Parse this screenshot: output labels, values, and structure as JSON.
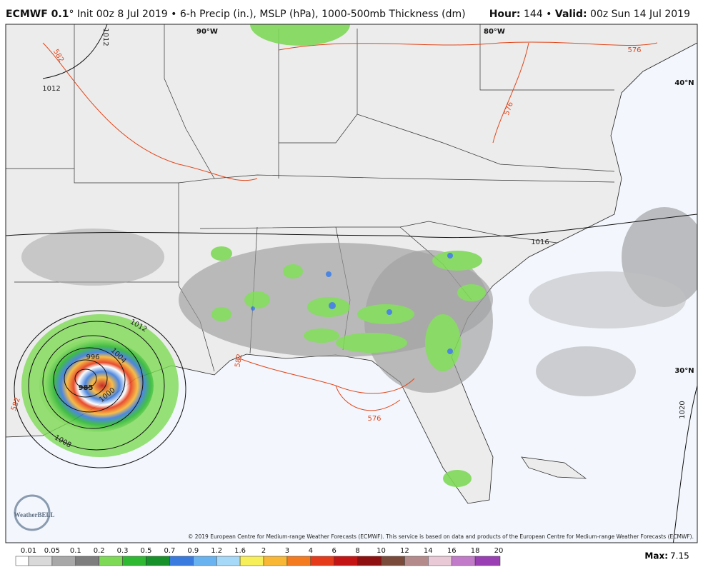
{
  "header": {
    "left": [
      {
        "text": "ECMWF 0.1",
        "bold": true
      },
      {
        "text": "° Init 00z 8 Jul 2019 • 6-h Precip (in.), MSLP (hPa), 1000-500mb Thickness (dm)",
        "bold": false
      }
    ],
    "right": [
      {
        "text": "Hour:",
        "bold": true
      },
      {
        "text": " 144 • ",
        "bold": false
      },
      {
        "text": "Valid:",
        "bold": true
      },
      {
        "text": " 00z Sun 14 Jul 2019",
        "bold": false
      }
    ]
  },
  "map": {
    "grid_labels": [
      "90°W",
      "80°W",
      "40°N",
      "30°N"
    ],
    "contour_labels": [
      "1012",
      "1012",
      "582",
      "576",
      "576",
      "1016",
      "1012",
      "1004",
      "996",
      "985",
      "1000",
      "1008",
      "576",
      "582",
      "1020",
      "582"
    ],
    "copyright": "© 2019 European Centre for Medium-range Weather Forecasts (ECMWF). This service is based on data and products of the European Centre for Medium-range Weather Forecasts (ECMWF).",
    "logo": "WeatherBELL"
  },
  "legend": {
    "labels": [
      "0.01",
      "0.05",
      "0.1",
      "0.2",
      "0.3",
      "0.5",
      "0.7",
      "0.9",
      "1.2",
      "1.6",
      "2",
      "3",
      "4",
      "6",
      "8",
      "10",
      "12",
      "14",
      "16",
      "18",
      "20"
    ],
    "colors": [
      "#ffffff",
      "#d9d9d9",
      "#a8a8a8",
      "#7e7e7e",
      "#7ed957",
      "#2fb832",
      "#17922a",
      "#3a7be0",
      "#69b4f0",
      "#a6d8f7",
      "#f7ef5a",
      "#f8b734",
      "#f57b20",
      "#e63b1a",
      "#c41414",
      "#8e1010",
      "#7a4a3a",
      "#b48a8a",
      "#e9c9d6",
      "#c27bc9",
      "#9b3fb5"
    ]
  },
  "max": {
    "label": "Max:",
    "value": "7.15"
  }
}
